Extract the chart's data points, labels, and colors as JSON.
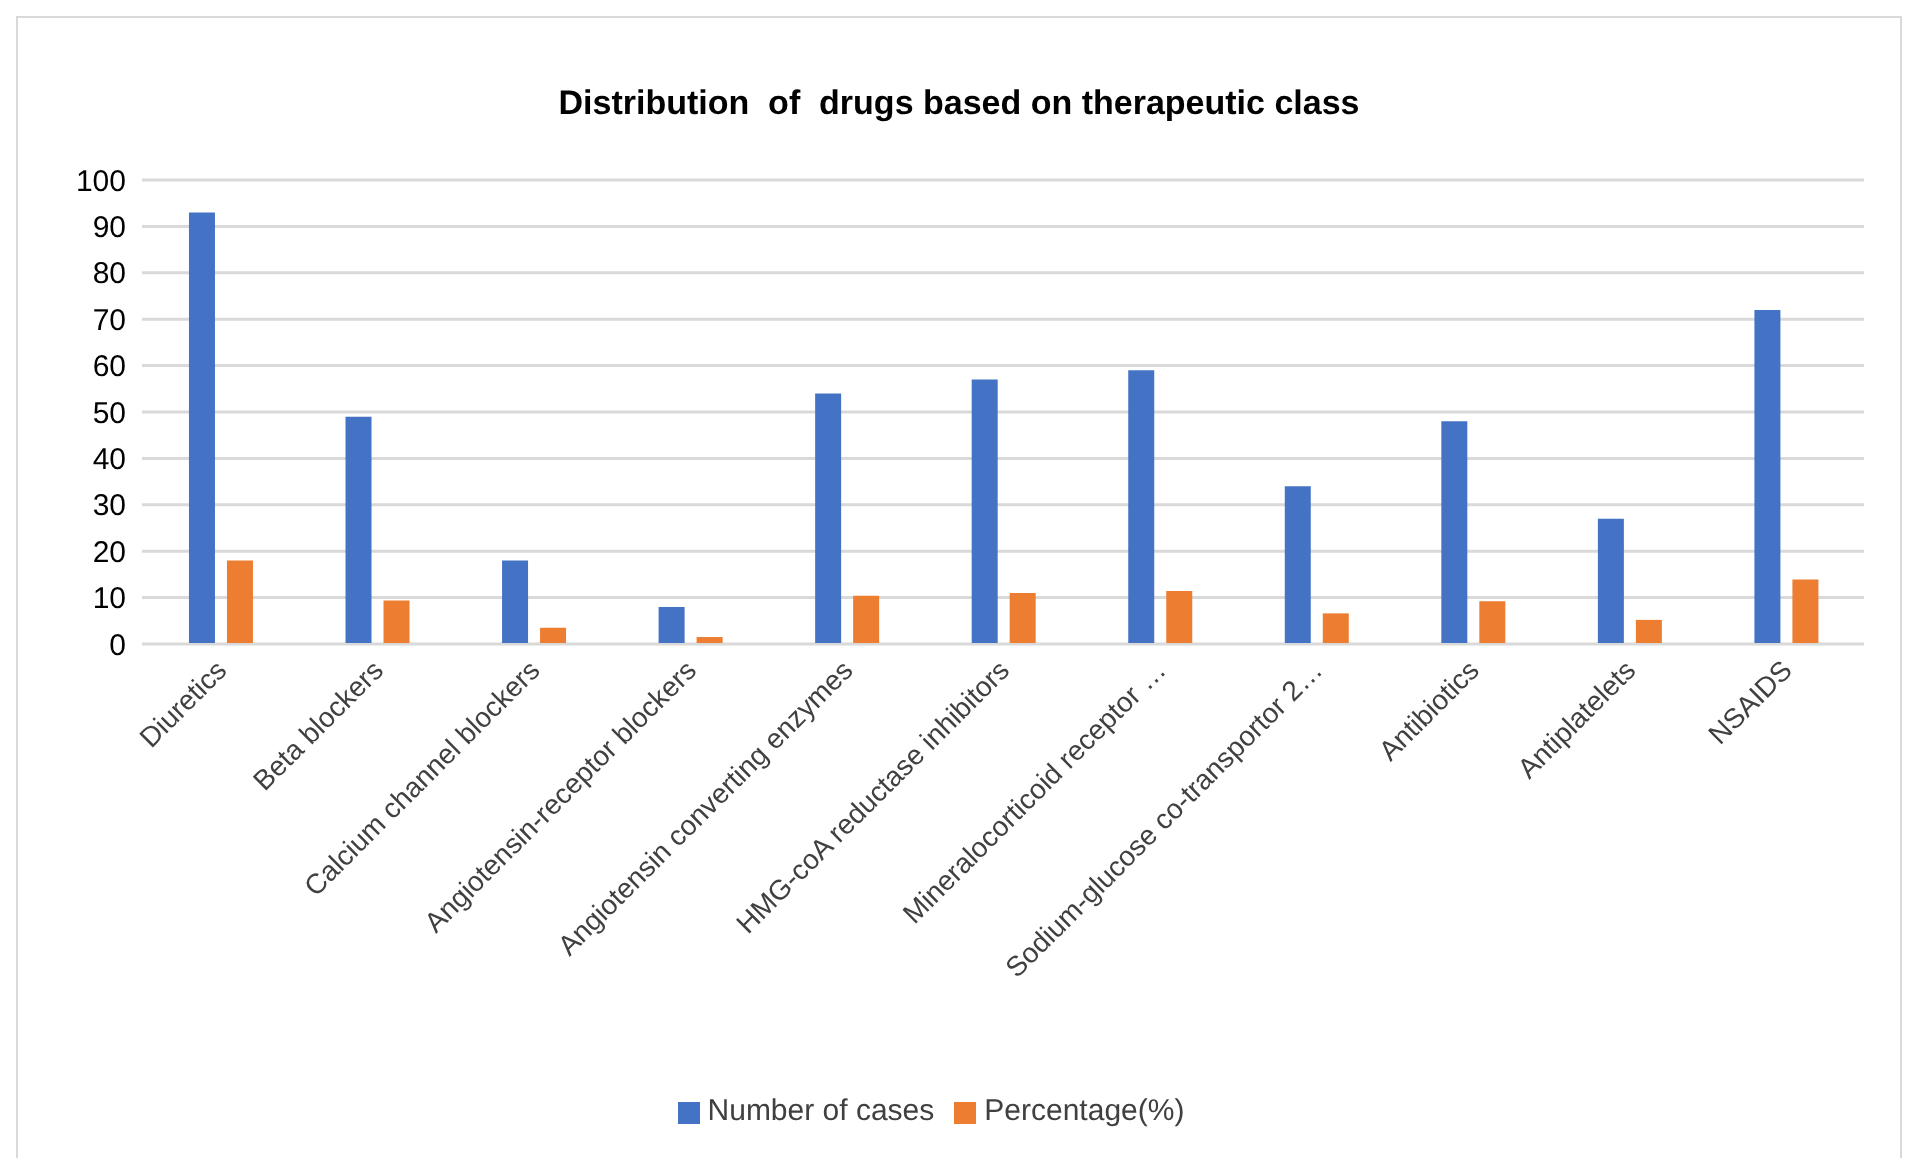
{
  "chart_data": {
    "type": "bar",
    "title": "Distribution  of  drugs based on therapeutic class",
    "categories": [
      "Diuretics",
      "Beta blockers",
      "Calcium channel blockers",
      "Angiotensin-receptor blockers",
      "Angiotensin converting enzymes",
      "HMG-coA reductase inhibitors",
      "Mineralocorticoid receptor …",
      "Sodium-glucose co-transportor 2…",
      "Antibiotics",
      "Antiplatelets",
      "NSAIDS"
    ],
    "series": [
      {
        "name": "Number of cases",
        "color": "#4472c4",
        "values": [
          93,
          49,
          18,
          8,
          54,
          57,
          59,
          34,
          48,
          27,
          72
        ]
      },
      {
        "name": "Percentage(%)",
        "color": "#ed7d31",
        "values": [
          18,
          9.4,
          3.5,
          1.5,
          10.4,
          11,
          11.4,
          6.6,
          9.2,
          5.2,
          13.9
        ]
      }
    ],
    "ylim": [
      0,
      100
    ],
    "yticks": [
      0,
      10,
      20,
      30,
      40,
      50,
      60,
      70,
      80,
      90,
      100
    ],
    "grid": "y",
    "legend": "bottom"
  }
}
